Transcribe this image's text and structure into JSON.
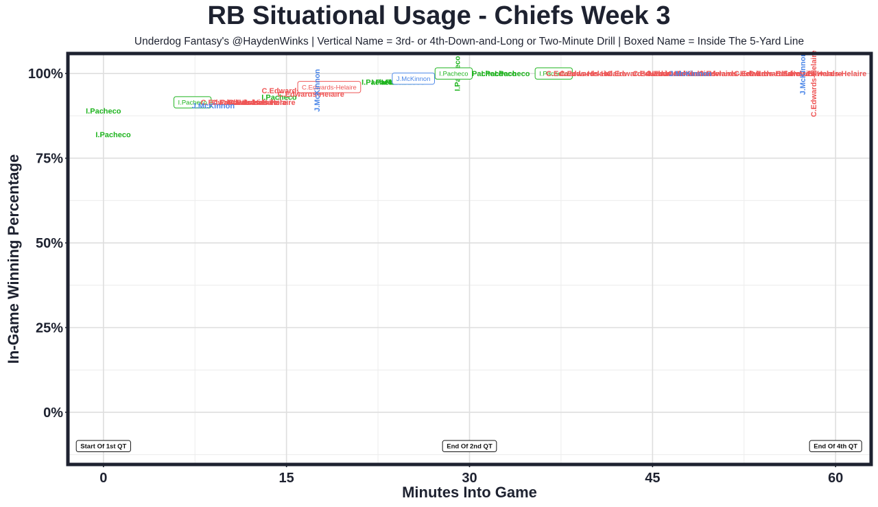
{
  "chart_data": {
    "type": "scatter",
    "title": "RB Situational Usage - Chiefs Week 3",
    "subtitle": "Underdog Fantasy's @HaydenWinks | Vertical Name = 3rd- or 4th-Down-and-Long or Two-Minute Drill | Boxed Name = Inside The 5-Yard Line",
    "xlabel": "Minutes Into Game",
    "ylabel": "In-Game Winning Percentage",
    "xlim": [
      -2.8,
      62.8
    ],
    "ylim": [
      -15,
      105.5
    ],
    "x_ticks": [
      0,
      15,
      30,
      45,
      60
    ],
    "x_tick_labels": [
      "0",
      "15",
      "30",
      "45",
      "60"
    ],
    "y_ticks": [
      0,
      25,
      50,
      75,
      100
    ],
    "y_tick_labels": [
      "0%",
      "25%",
      "50%",
      "75%",
      "100%"
    ],
    "grid": true,
    "colors": {
      "I.Pacheco": "#1fb41f",
      "C.Edwards-Helaire": "#ee5555",
      "J.McKinnon": "#4a86e8",
      "frame": "#1e2230"
    },
    "quarter_markers": [
      {
        "x": 0,
        "label": "Start Of 1st QT"
      },
      {
        "x": 30,
        "label": "End Of 2nd QT"
      },
      {
        "x": 60,
        "label": "End Of 4th QT"
      }
    ],
    "series": [
      {
        "name": "I.Pacheco",
        "points": [
          {
            "x": 0,
            "y": 89,
            "style": "normal"
          },
          {
            "x": 0.8,
            "y": 82,
            "style": "normal"
          },
          {
            "x": 14.4,
            "y": 93,
            "style": "normal"
          },
          {
            "x": 22.6,
            "y": 97.5,
            "style": "normal"
          },
          {
            "x": 23.4,
            "y": 97.5,
            "style": "normal"
          },
          {
            "x": 24.2,
            "y": 97.5,
            "style": "normal"
          },
          {
            "x": 24.9,
            "y": 97.5,
            "style": "normal"
          },
          {
            "x": 31.3,
            "y": 100,
            "style": "normal"
          },
          {
            "x": 32.4,
            "y": 100,
            "style": "normal"
          },
          {
            "x": 33.5,
            "y": 100,
            "style": "normal"
          },
          {
            "x": 29,
            "y": 100,
            "style": "vertical"
          },
          {
            "x": 7.3,
            "y": 91.5,
            "style": "boxed"
          },
          {
            "x": 28.7,
            "y": 100,
            "style": "boxed"
          },
          {
            "x": 36.9,
            "y": 100,
            "style": "boxed"
          }
        ]
      },
      {
        "name": "C.Edwards-Helaire",
        "points": [
          {
            "x": 10.7,
            "y": 91.5,
            "style": "normal"
          },
          {
            "x": 11.6,
            "y": 91.5,
            "style": "normal"
          },
          {
            "x": 12.3,
            "y": 91.5,
            "style": "normal"
          },
          {
            "x": 13,
            "y": 91.5,
            "style": "normal"
          },
          {
            "x": 15.7,
            "y": 95,
            "style": "normal"
          },
          {
            "x": 17,
            "y": 94,
            "style": "normal"
          },
          {
            "x": 39,
            "y": 100,
            "style": "normal"
          },
          {
            "x": 40.1,
            "y": 100,
            "style": "normal"
          },
          {
            "x": 44,
            "y": 100,
            "style": "normal"
          },
          {
            "x": 46.1,
            "y": 100,
            "style": "normal"
          },
          {
            "x": 47.2,
            "y": 100,
            "style": "normal"
          },
          {
            "x": 49,
            "y": 100,
            "style": "normal"
          },
          {
            "x": 51.5,
            "y": 100,
            "style": "normal"
          },
          {
            "x": 54.4,
            "y": 100,
            "style": "normal"
          },
          {
            "x": 55.6,
            "y": 100,
            "style": "normal"
          },
          {
            "x": 57.8,
            "y": 100,
            "style": "normal"
          },
          {
            "x": 59.8,
            "y": 100,
            "style": "normal"
          },
          {
            "x": 58.2,
            "y": 97,
            "style": "vertical"
          },
          {
            "x": 18.5,
            "y": 96,
            "style": "boxed"
          }
        ]
      },
      {
        "name": "J.McKinnon",
        "points": [
          {
            "x": 9,
            "y": 90.5,
            "style": "normal"
          },
          {
            "x": 48.1,
            "y": 100,
            "style": "normal"
          },
          {
            "x": 17.5,
            "y": 95,
            "style": "vertical"
          },
          {
            "x": 57.3,
            "y": 100,
            "style": "vertical"
          },
          {
            "x": 25.4,
            "y": 98.5,
            "style": "boxed"
          }
        ]
      }
    ]
  }
}
